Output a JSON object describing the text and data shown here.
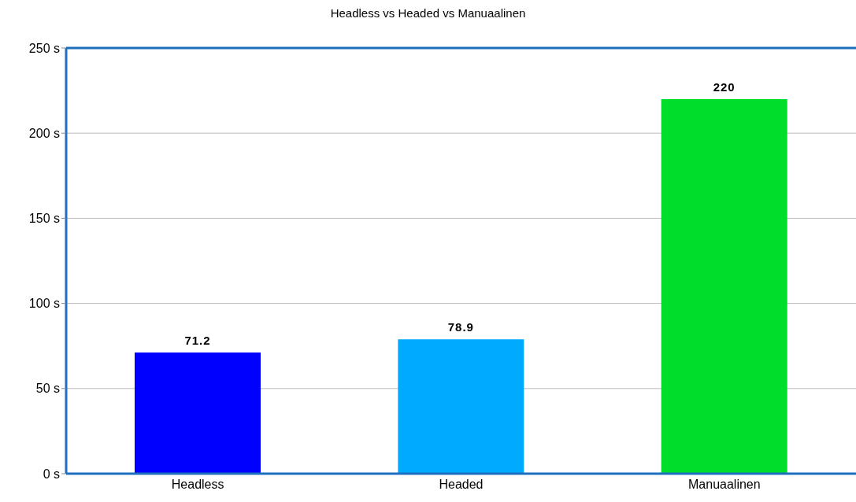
{
  "chart_data": {
    "type": "bar",
    "title": "Headless vs Headed vs Manuaalinen",
    "categories": [
      "Headless",
      "Headed",
      "Manuaalinen"
    ],
    "values": [
      71.2,
      78.9,
      220
    ],
    "colors": [
      "#0000ff",
      "#00aaff",
      "#00dd2a"
    ],
    "ylim": [
      0,
      250
    ],
    "yticks": [
      {
        "value": 0,
        "label": "0 s"
      },
      {
        "value": 50,
        "label": "50 s"
      },
      {
        "value": 100,
        "label": "100 s"
      },
      {
        "value": 150,
        "label": "150 s"
      },
      {
        "value": 200,
        "label": "200 s"
      },
      {
        "value": 250,
        "label": "250 s"
      }
    ],
    "grid": "y",
    "data_labels": true
  }
}
